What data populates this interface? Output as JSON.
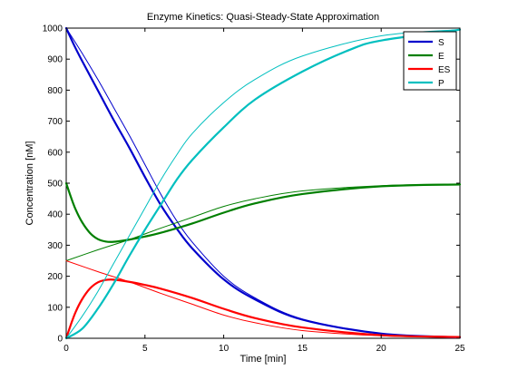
{
  "chart_data": {
    "type": "line",
    "title": "Enzyme Kinetics: Quasi-Steady-State Approximation",
    "xlabel": "Time [min]",
    "ylabel": "Concentration [nM]",
    "xlim": [
      0,
      25
    ],
    "ylim": [
      0,
      1000
    ],
    "xticks": [
      0,
      5,
      10,
      15,
      20,
      25
    ],
    "yticks": [
      0,
      100,
      200,
      300,
      400,
      500,
      600,
      700,
      800,
      900,
      1000
    ],
    "grid": false,
    "legend_position": "top-right",
    "legend": [
      "S",
      "E",
      "ES",
      "P"
    ],
    "series": [
      {
        "name": "S",
        "kind": "full model",
        "color": "#0000cc",
        "width": 2.2,
        "x": [
          0,
          0.5,
          1,
          2,
          3,
          4,
          5,
          6,
          7,
          8,
          10,
          12,
          15,
          20,
          25
        ],
        "y": [
          1000,
          945,
          895,
          800,
          705,
          615,
          520,
          430,
          355,
          290,
          190,
          125,
          60,
          15,
          3
        ]
      },
      {
        "name": "",
        "kind": "QSSA",
        "color": "#0000cc",
        "width": 1,
        "x": [
          0,
          1,
          2,
          3,
          4,
          5,
          6,
          7,
          8,
          10,
          12,
          15,
          20,
          25
        ],
        "y": [
          1000,
          920,
          835,
          745,
          655,
          560,
          465,
          380,
          310,
          200,
          130,
          62,
          15,
          3
        ]
      },
      {
        "name": "E",
        "kind": "full model",
        "color": "#007f00",
        "width": 2.2,
        "x": [
          0,
          0.3,
          0.6,
          1,
          1.5,
          2,
          2.5,
          3,
          4,
          5,
          6,
          8,
          10,
          12,
          15,
          20,
          25
        ],
        "y": [
          500,
          455,
          415,
          375,
          340,
          320,
          312,
          311,
          318,
          328,
          340,
          370,
          405,
          435,
          465,
          490,
          496
        ]
      },
      {
        "name": "",
        "kind": "QSSA",
        "color": "#007f00",
        "width": 1,
        "x": [
          0,
          2,
          4,
          6,
          8,
          10,
          12,
          15,
          20,
          25
        ],
        "y": [
          250,
          285,
          318,
          355,
          390,
          425,
          450,
          475,
          492,
          497
        ]
      },
      {
        "name": "ES",
        "kind": "full model",
        "color": "#ff0000",
        "width": 2.2,
        "x": [
          0,
          0.3,
          0.6,
          1,
          1.5,
          2,
          2.5,
          3,
          4,
          5,
          6,
          8,
          10,
          12,
          15,
          20,
          25
        ],
        "y": [
          0,
          45,
          85,
          125,
          160,
          180,
          188,
          189,
          182,
          172,
          160,
          130,
          95,
          65,
          35,
          10,
          4
        ]
      },
      {
        "name": "",
        "kind": "QSSA",
        "color": "#ff0000",
        "width": 1,
        "x": [
          0,
          2,
          4,
          6,
          8,
          10,
          12,
          15,
          20,
          25
        ],
        "y": [
          250,
          215,
          182,
          145,
          110,
          75,
          50,
          25,
          8,
          3
        ]
      },
      {
        "name": "P",
        "kind": "full model",
        "color": "#00bfbf",
        "width": 2.2,
        "x": [
          0,
          1,
          2,
          3,
          4,
          5,
          6,
          7,
          8,
          10,
          12,
          15,
          18,
          20,
          25
        ],
        "y": [
          0,
          30,
          95,
          175,
          265,
          350,
          430,
          510,
          575,
          680,
          770,
          860,
          930,
          960,
          995
        ]
      },
      {
        "name": "",
        "kind": "QSSA",
        "color": "#00bfbf",
        "width": 1,
        "x": [
          0,
          1,
          2,
          3,
          4,
          5,
          6,
          7,
          8,
          10,
          12,
          15,
          20,
          25
        ],
        "y": [
          0,
          70,
          150,
          240,
          330,
          420,
          510,
          590,
          660,
          760,
          835,
          910,
          975,
          995
        ]
      }
    ]
  }
}
